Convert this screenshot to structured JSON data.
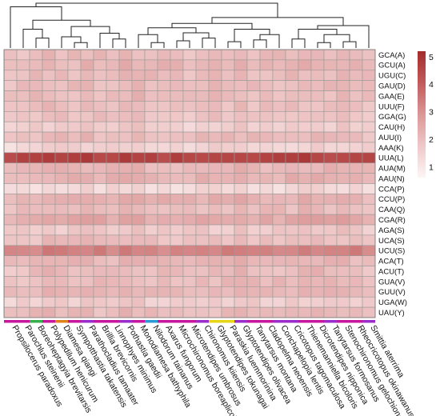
{
  "chart_data": {
    "type": "heatmap",
    "title": "",
    "xlabel": "",
    "ylabel": "",
    "rows": [
      "GCA(A)",
      "GCU(A)",
      "UGU(C)",
      "GAU(D)",
      "GAA(E)",
      "UUU(F)",
      "GGA(G)",
      "CAU(H)",
      "AUU(I)",
      "AAA(K)",
      "UUA(L)",
      "AUA(M)",
      "AAU(N)",
      "CCA(P)",
      "CCU(P)",
      "CAA(Q)",
      "CGA(R)",
      "AGA(S)",
      "UCA(S)",
      "UCU(S)",
      "ACA(T)",
      "ACU(T)",
      "GUA(V)",
      "GUU(V)",
      "UGA(W)",
      "UAU(Y)"
    ],
    "columns": [
      "Propsilocerus paradoxus",
      "Parochlus steinenii",
      "Boreoheptagyia brevitarsis",
      "Polypedilum henicurum",
      "Diamesa qiangi",
      "Sympotthastia takatensis",
      "Parathocladius tamaater",
      "Brillia brevicornis",
      "Linnophyes minimus",
      "Pothastia gaedii",
      "Monodiamesa bathyphila",
      "Nilodorum tainanus",
      "Axarus fungorum",
      "Microchironomus boreaplicola",
      "Microtendipes umbrosus",
      "Chironomus kiiensis",
      "Glyptotendipes tokunagai",
      "Paraskia luemmorinina",
      "Glyptotendipes olivacea",
      "Tanytarsus montana",
      "Cladopelma neoensis",
      "Conchapelopia lentis",
      "Cricotopus tagomaculosa",
      "Thienemanniella bicoloris",
      "Dicrotendipes nipponica",
      "Tanytarsus formosanus",
      "Stenochironomus gelochione",
      "Rheocricotopus okinawanus",
      "Smittia aterrima"
    ],
    "row_mean": [
      2.1,
      2.2,
      2.1,
      2.1,
      2.1,
      2.0,
      2.0,
      1.7,
      2.1,
      1.6,
      4.6,
      2.2,
      2.3,
      1.4,
      2.3,
      2.1,
      2.5,
      1.8,
      2.0,
      3.3,
      2.2,
      2.1,
      2.1,
      2.2,
      1.7,
      2.1
    ],
    "col_offset": [
      -0.2,
      -0.1,
      0.0,
      0.1,
      0.0,
      0.0,
      0.1,
      0.0,
      0.0,
      0.1,
      0.1,
      0.0,
      0.0,
      0.0,
      -0.1,
      0.0,
      0.0,
      0.0,
      0.1,
      0.0,
      0.0,
      0.0,
      0.0,
      0.1,
      0.1,
      0.0,
      0.1,
      0.0,
      -0.1
    ],
    "value_range": [
      0.7,
      5.2
    ],
    "colorbar_ticks": [
      1,
      2,
      3,
      4,
      5
    ],
    "colorbar_colors": [
      "#fdf6f6",
      "#efc8c8",
      "#dc9696",
      "#c25a5a",
      "#a32c2c"
    ],
    "column_group_colors": [
      "#c7179c",
      "#c7179c",
      "#36b04b",
      "#c7179c",
      "#e0821c",
      "#c7179c",
      "#9b2ecb",
      "#c7179c",
      "#c7179c",
      "#9b2ecb",
      "#c7179c",
      "#2b9bd6",
      "#c7179c",
      "#c7179c",
      "#c7179c",
      "#9b2ecb",
      "#e6d617",
      "#e6d617",
      "#9b2ecb",
      "#c7179c",
      "#c7179c",
      "#9b2ecb",
      "#9b2ecb",
      "#c7179c",
      "#c7179c",
      "#9b2ecb",
      "#c7179c",
      "#c7179c",
      "#9b2ecb"
    ],
    "dendrogram": true,
    "grid": true,
    "legend": "right"
  }
}
